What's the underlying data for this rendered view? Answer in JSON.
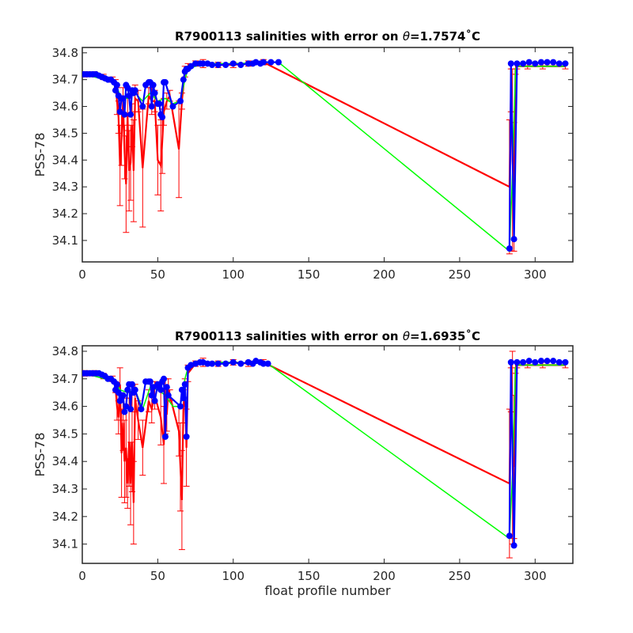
{
  "chart_data": [
    {
      "type": "line",
      "title": "R7900113 salinities with error on θ=1.7574˚C",
      "title_prefix": "R7900113 salinities with error on ",
      "title_theta": "θ",
      "title_suffix": "=1.7574˚C",
      "xlabel": "",
      "ylabel": "PSS-78",
      "xlim": [
        0,
        325
      ],
      "ylim": [
        34.02,
        34.82
      ],
      "xticks": [
        0,
        50,
        100,
        150,
        200,
        250,
        300
      ],
      "yticks": [
        34.1,
        34.2,
        34.3,
        34.4,
        34.5,
        34.6,
        34.7,
        34.8
      ],
      "grid": false,
      "colors": {
        "error_bars": "#ff0000",
        "measured": "#0000ff",
        "mapped": "#00ff00"
      },
      "series": [
        {
          "role": "measured",
          "x": [
            1,
            3,
            5,
            7,
            9,
            11,
            13,
            15,
            17,
            19,
            21,
            22,
            23,
            24,
            25,
            26,
            27,
            28,
            29,
            30,
            31,
            32,
            33,
            34,
            35,
            40,
            42,
            44,
            45,
            46,
            47,
            48,
            50,
            51,
            52,
            53,
            54,
            55,
            60,
            65,
            67,
            68,
            69,
            70,
            72,
            75,
            78,
            80,
            83,
            86,
            90,
            95,
            100,
            105,
            110,
            113,
            115,
            118,
            120,
            125,
            130,
            283,
            284,
            286,
            288,
            292,
            296,
            300,
            304,
            308,
            312,
            316,
            320
          ],
          "y": [
            34.72,
            34.72,
            34.72,
            34.72,
            34.72,
            34.715,
            34.71,
            34.705,
            34.7,
            34.7,
            34.69,
            34.66,
            34.68,
            34.64,
            34.58,
            34.63,
            34.63,
            34.57,
            34.68,
            34.67,
            34.64,
            34.57,
            34.66,
            34.65,
            34.66,
            34.6,
            34.68,
            34.69,
            34.69,
            34.6,
            34.68,
            34.65,
            34.61,
            34.61,
            34.57,
            34.56,
            34.69,
            34.69,
            34.6,
            34.62,
            34.7,
            34.73,
            34.74,
            34.74,
            34.75,
            34.76,
            34.76,
            34.76,
            34.76,
            34.755,
            34.755,
            34.755,
            34.76,
            34.755,
            34.76,
            34.76,
            34.765,
            34.76,
            34.765,
            34.765,
            34.765,
            34.07,
            34.76,
            34.105,
            34.76,
            34.76,
            34.765,
            34.76,
            34.765,
            34.765,
            34.765,
            34.76,
            34.76
          ]
        },
        {
          "role": "mapped",
          "x": [
            1,
            22,
            25,
            30,
            35,
            40,
            45,
            50,
            55,
            60,
            65,
            68,
            70,
            80,
            100,
            130,
            283,
            285,
            287,
            288,
            320
          ],
          "y": [
            34.72,
            34.69,
            34.64,
            34.63,
            34.65,
            34.62,
            34.65,
            34.62,
            34.63,
            34.61,
            34.62,
            34.7,
            34.74,
            34.76,
            34.76,
            34.765,
            34.06,
            34.35,
            34.74,
            34.75,
            34.75
          ]
        }
      ],
      "error_bars": {
        "x": [
          2,
          8,
          14,
          20,
          22,
          23,
          24,
          25,
          26,
          27,
          28,
          29,
          30,
          31,
          32,
          33,
          34,
          35,
          37,
          40,
          44,
          46,
          48,
          50,
          52,
          53,
          54,
          56,
          58,
          64,
          66,
          68,
          70,
          75,
          80,
          90,
          100,
          110,
          120,
          283,
          284,
          285,
          286,
          287,
          288,
          295,
          305,
          320
        ],
        "y": [
          34.72,
          34.72,
          34.71,
          34.7,
          34.68,
          34.62,
          34.56,
          34.38,
          34.48,
          34.62,
          34.43,
          34.31,
          34.57,
          34.36,
          34.39,
          34.53,
          34.36,
          34.63,
          34.62,
          34.37,
          34.64,
          34.62,
          34.62,
          34.4,
          34.38,
          34.47,
          34.58,
          34.62,
          34.64,
          34.44,
          34.62,
          34.73,
          34.75,
          34.76,
          34.76,
          34.755,
          34.755,
          34.76,
          34.765,
          34.3,
          34.66,
          34.4,
          34.3,
          34.74,
          34.75,
          34.75,
          34.75,
          34.75
        ],
        "err": [
          0.01,
          0.01,
          0.01,
          0.01,
          0.02,
          0.05,
          0.06,
          0.15,
          0.1,
          0.05,
          0.1,
          0.18,
          0.06,
          0.15,
          0.14,
          0.08,
          0.19,
          0.05,
          0.04,
          0.22,
          0.03,
          0.05,
          0.04,
          0.13,
          0.17,
          0.12,
          0.05,
          0.03,
          0.02,
          0.18,
          0.03,
          0.02,
          0.01,
          0.01,
          0.015,
          0.01,
          0.01,
          0.01,
          0.01,
          0.25,
          0.08,
          0.34,
          0.24,
          0.02,
          0.01,
          0.01,
          0.01,
          0.01
        ]
      }
    },
    {
      "type": "line",
      "title": "R7900113 salinities with error on θ=1.6935˚C",
      "title_prefix": "R7900113 salinities with error on ",
      "title_theta": "θ",
      "title_suffix": "=1.6935˚C",
      "xlabel": "float profile number",
      "ylabel": "PSS-78",
      "xlim": [
        0,
        325
      ],
      "ylim": [
        34.03,
        34.82
      ],
      "xticks": [
        0,
        50,
        100,
        150,
        200,
        250,
        300
      ],
      "yticks": [
        34.1,
        34.2,
        34.3,
        34.4,
        34.5,
        34.6,
        34.7,
        34.8
      ],
      "grid": false,
      "colors": {
        "error_bars": "#ff0000",
        "measured": "#0000ff",
        "mapped": "#00ff00"
      },
      "series": [
        {
          "role": "measured",
          "x": [
            1,
            3,
            5,
            7,
            9,
            11,
            13,
            15,
            17,
            19,
            21,
            22,
            23,
            24,
            25,
            26,
            27,
            28,
            29,
            30,
            31,
            32,
            33,
            34,
            35,
            39,
            42,
            44,
            45,
            46,
            47,
            48,
            50,
            51,
            52,
            53,
            54,
            55,
            56,
            57,
            65,
            66,
            67,
            68,
            69,
            70,
            72,
            75,
            78,
            80,
            83,
            86,
            90,
            95,
            100,
            105,
            110,
            113,
            115,
            118,
            120,
            123,
            283,
            284,
            286,
            288,
            292,
            296,
            300,
            304,
            308,
            312,
            316,
            320
          ],
          "y": [
            34.72,
            34.72,
            34.72,
            34.72,
            34.72,
            34.72,
            34.715,
            34.71,
            34.7,
            34.7,
            34.69,
            34.66,
            34.68,
            34.65,
            34.62,
            34.63,
            34.64,
            34.58,
            34.6,
            34.66,
            34.68,
            34.59,
            34.68,
            34.65,
            34.66,
            34.59,
            34.69,
            34.69,
            34.69,
            34.64,
            34.67,
            34.62,
            34.68,
            34.67,
            34.66,
            34.69,
            34.7,
            34.49,
            34.67,
            34.64,
            34.6,
            34.66,
            34.63,
            34.68,
            34.49,
            34.74,
            34.75,
            34.755,
            34.76,
            34.76,
            34.755,
            34.755,
            34.755,
            34.755,
            34.76,
            34.755,
            34.76,
            34.755,
            34.765,
            34.76,
            34.755,
            34.755,
            34.13,
            34.76,
            34.095,
            34.76,
            34.76,
            34.765,
            34.76,
            34.765,
            34.765,
            34.765,
            34.76,
            34.76
          ]
        },
        {
          "role": "mapped",
          "x": [
            1,
            22,
            25,
            30,
            35,
            40,
            45,
            50,
            55,
            60,
            65,
            68,
            70,
            80,
            100,
            123,
            283,
            285,
            287,
            288,
            320
          ],
          "y": [
            34.72,
            34.69,
            34.66,
            34.65,
            34.66,
            34.59,
            34.67,
            34.66,
            34.64,
            34.6,
            34.6,
            34.7,
            34.74,
            34.76,
            34.76,
            34.755,
            34.12,
            34.35,
            34.74,
            34.75,
            34.75
          ]
        }
      ],
      "error_bars": {
        "x": [
          2,
          8,
          14,
          20,
          22,
          23,
          24,
          25,
          26,
          27,
          28,
          29,
          30,
          31,
          32,
          33,
          34,
          35,
          37,
          40,
          44,
          46,
          48,
          52,
          54,
          55,
          56,
          57,
          58,
          64,
          65,
          66,
          67,
          68,
          69,
          70,
          75,
          80,
          90,
          100,
          110,
          120,
          283,
          284,
          285,
          286,
          287,
          288,
          295,
          305,
          320
        ],
        "y": [
          34.72,
          34.72,
          34.71,
          34.7,
          34.67,
          34.6,
          34.56,
          34.68,
          34.43,
          34.54,
          34.4,
          34.45,
          34.32,
          34.47,
          34.32,
          34.47,
          34.25,
          34.63,
          34.55,
          34.45,
          34.62,
          34.59,
          34.64,
          34.56,
          34.46,
          34.6,
          34.57,
          34.66,
          34.64,
          34.51,
          34.38,
          34.26,
          34.6,
          34.65,
          34.45,
          34.72,
          34.755,
          34.76,
          34.755,
          34.76,
          34.755,
          34.76,
          34.32,
          34.66,
          34.45,
          34.38,
          34.74,
          34.75,
          34.75,
          34.75,
          34.75
        ],
        "err": [
          0.01,
          0.01,
          0.01,
          0.01,
          0.02,
          0.05,
          0.06,
          0.06,
          0.16,
          0.1,
          0.15,
          0.18,
          0.09,
          0.16,
          0.15,
          0.18,
          0.15,
          0.05,
          0.07,
          0.1,
          0.04,
          0.05,
          0.05,
          0.1,
          0.14,
          0.1,
          0.06,
          0.04,
          0.02,
          0.09,
          0.16,
          0.18,
          0.06,
          0.05,
          0.14,
          0.03,
          0.01,
          0.015,
          0.01,
          0.01,
          0.01,
          0.01,
          0.27,
          0.08,
          0.35,
          0.26,
          0.02,
          0.01,
          0.01,
          0.01,
          0.01
        ]
      }
    }
  ]
}
